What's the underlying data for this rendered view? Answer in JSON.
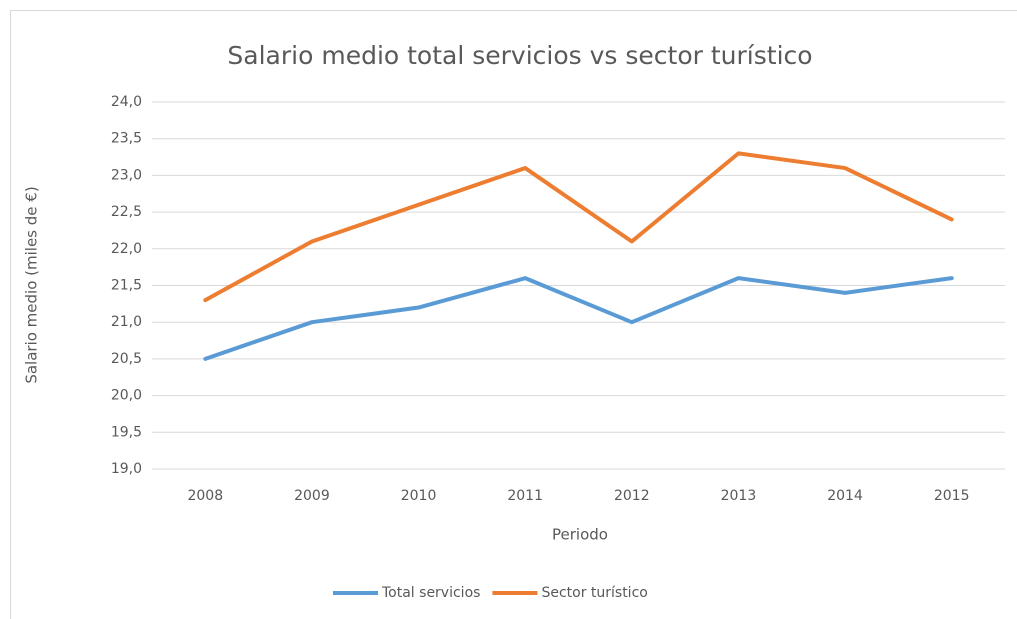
{
  "chart_data": {
    "type": "line",
    "title": "Salario medio total servicios vs sector turístico",
    "x_label": "Periodo",
    "y_label": "Salario medio (miles de €)",
    "categories": [
      "2008",
      "2009",
      "2010",
      "2011",
      "2012",
      "2013",
      "2014",
      "2015"
    ],
    "series": [
      {
        "name": "Total servicios",
        "color": "#5b9bd5",
        "values": [
          20.5,
          21.0,
          21.2,
          21.6,
          21.0,
          21.6,
          21.4,
          21.6
        ]
      },
      {
        "name": "Sector turístico",
        "color": "#ed7d31",
        "values": [
          21.3,
          22.1,
          22.6,
          23.1,
          22.1,
          23.3,
          23.1,
          22.4
        ]
      }
    ],
    "ylim": [
      19,
      24
    ],
    "yticks": [
      {
        "value": 19,
        "label": "19,0"
      },
      {
        "value": 19.5,
        "label": "19,5"
      },
      {
        "value": 20,
        "label": "20,0"
      },
      {
        "value": 20.5,
        "label": "20,5"
      },
      {
        "value": 21,
        "label": "21,0"
      },
      {
        "value": 21.5,
        "label": "21,5"
      },
      {
        "value": 22,
        "label": "22,0"
      },
      {
        "value": 22.5,
        "label": "22,5"
      },
      {
        "value": 23,
        "label": "23,0"
      },
      {
        "value": 23.5,
        "label": "23,5"
      },
      {
        "value": 24,
        "label": "24,0"
      }
    ],
    "grid": true,
    "legend": "bottom"
  }
}
